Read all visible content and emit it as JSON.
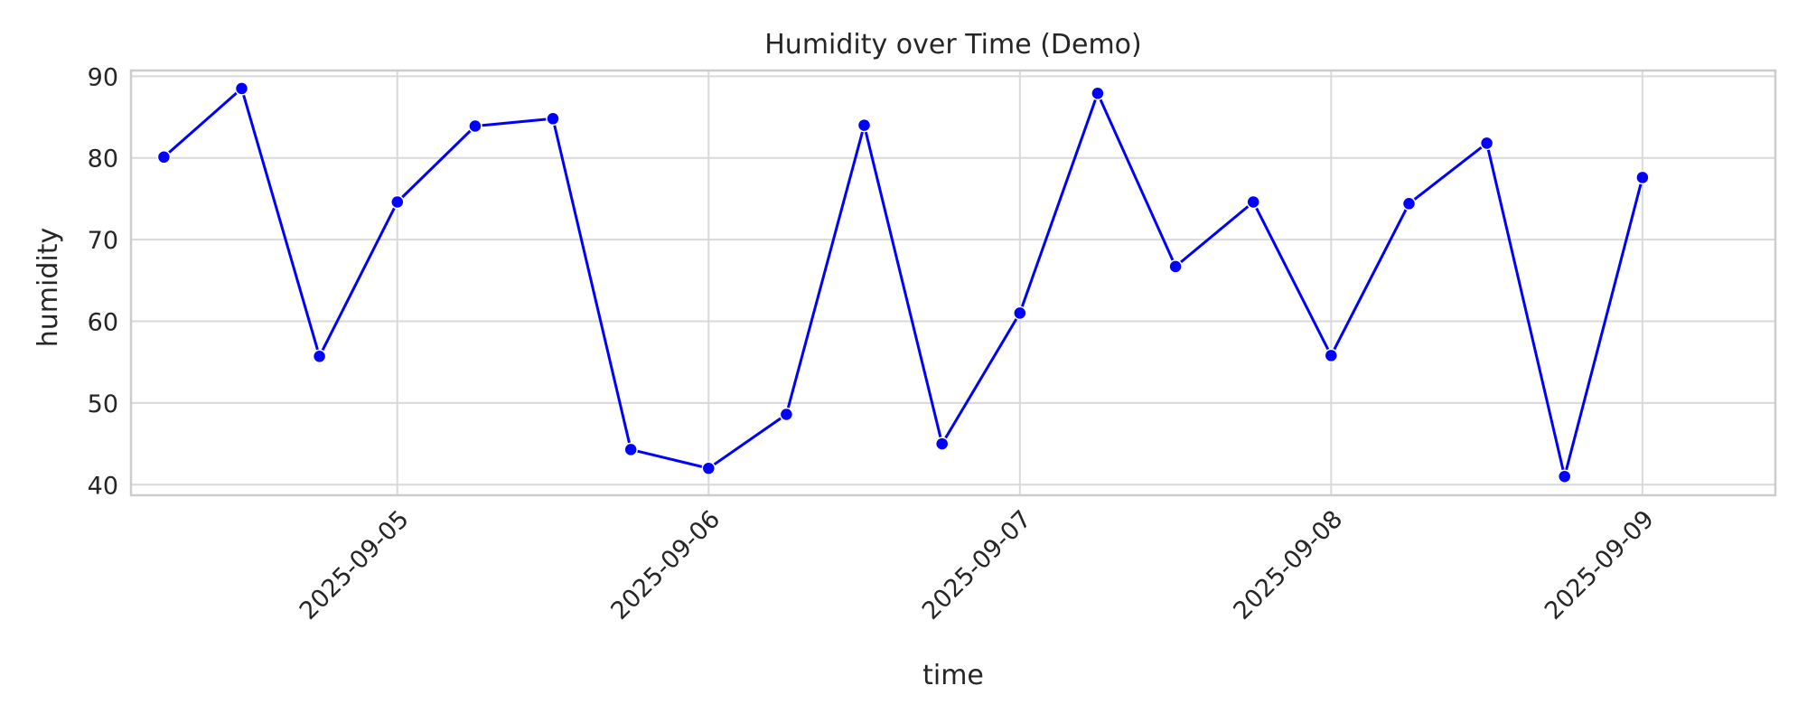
{
  "colors": {
    "series": "#0000ff",
    "grid": "#d9d9d9",
    "frame": "#cccccc",
    "text": "#262626",
    "background": "#ffffff"
  },
  "chart_data": {
    "type": "line",
    "title": "Humidity over Time (Demo)",
    "xlabel": "time",
    "ylabel": "humidity",
    "x_tick_labels": [
      "2025-09-05",
      "2025-09-06",
      "2025-09-07",
      "2025-09-08",
      "2025-09-09"
    ],
    "y_ticks": [
      40,
      50,
      60,
      70,
      80,
      90
    ],
    "ylim": [
      38.7,
      90.7
    ],
    "xlim": [
      "2025-09-04 03:28",
      "2025-09-09 10:15"
    ],
    "grid": true,
    "legend": "none",
    "marker": "circle",
    "series": [
      {
        "x": [
          "2025-09-04 06:00",
          "2025-09-04 12:00",
          "2025-09-04 18:00",
          "2025-09-05 00:00",
          "2025-09-05 06:00",
          "2025-09-05 12:00",
          "2025-09-05 18:00",
          "2025-09-06 00:00",
          "2025-09-06 06:00",
          "2025-09-06 12:00",
          "2025-09-06 18:00",
          "2025-09-07 00:00",
          "2025-09-07 06:00",
          "2025-09-07 12:00",
          "2025-09-07 18:00",
          "2025-09-08 00:00",
          "2025-09-08 06:00",
          "2025-09-08 12:00",
          "2025-09-08 18:00",
          "2025-09-09 00:00",
          "2025-09-09 06:00"
        ],
        "values": [
          80.1,
          88.5,
          55.7,
          74.6,
          83.9,
          84.8,
          44.3,
          42.0,
          48.6,
          84.0,
          45.0,
          61.0,
          87.9,
          66.7,
          74.6,
          55.8,
          74.4,
          81.8,
          41.0,
          77.6,
          null
        ]
      }
    ]
  }
}
